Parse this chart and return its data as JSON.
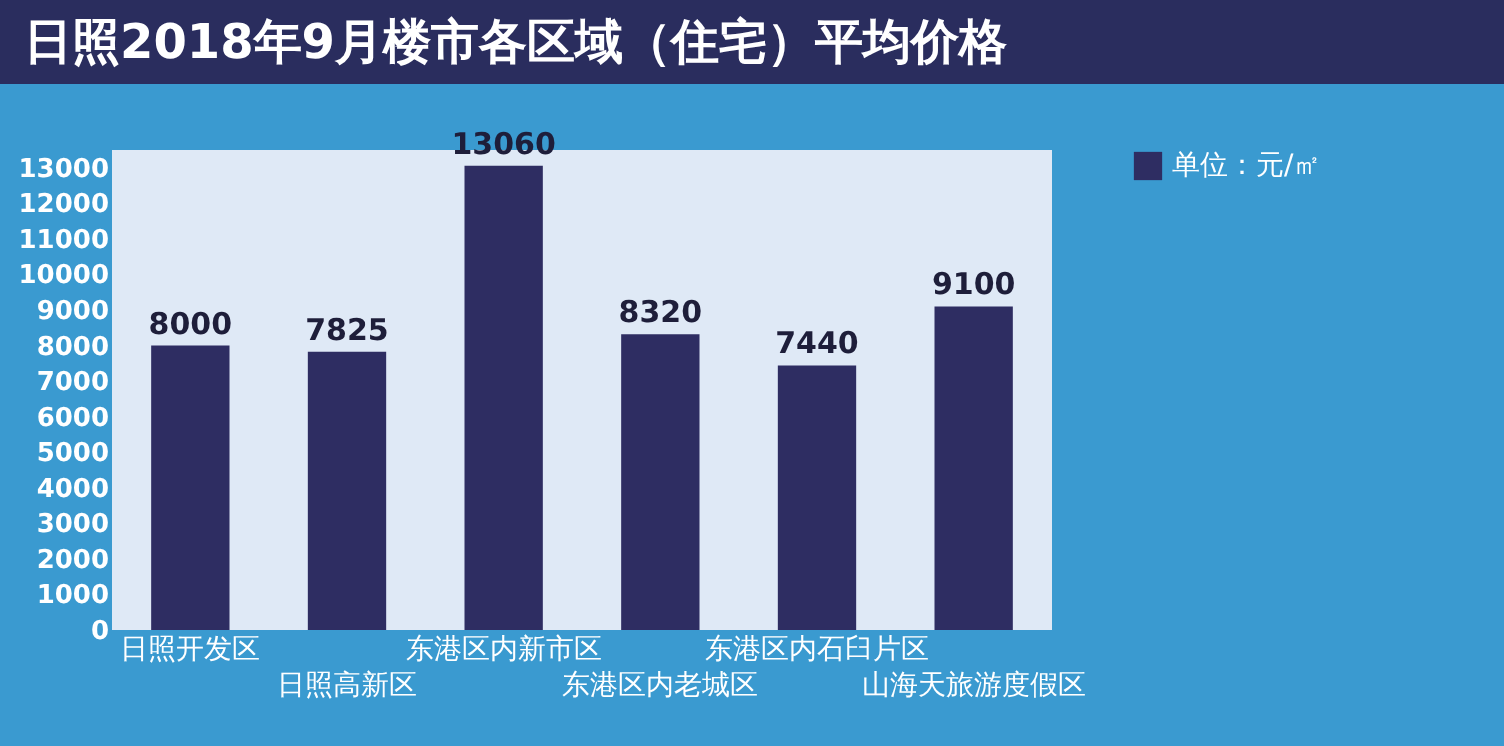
{
  "chart_data": {
    "type": "bar",
    "title": "日照2018年9月楼市各区域（住宅）平均价格",
    "categories": [
      "日照开发区",
      "日照高新区",
      "东港区内新市区",
      "东港区内老城区",
      "东港区内石臼片区",
      "山海天旅游度假区"
    ],
    "series": [
      {
        "name": "单位：元/㎡",
        "color": "#2e2d62",
        "values": [
          8000,
          7825,
          13060,
          8320,
          7440,
          9100
        ]
      }
    ],
    "ylim": [
      0,
      13500
    ],
    "yticks": [
      0,
      1000,
      2000,
      3000,
      4000,
      5000,
      6000,
      7000,
      8000,
      9000,
      10000,
      11000,
      12000,
      13000
    ],
    "data_labels": true,
    "grid": false,
    "legend": "right"
  }
}
